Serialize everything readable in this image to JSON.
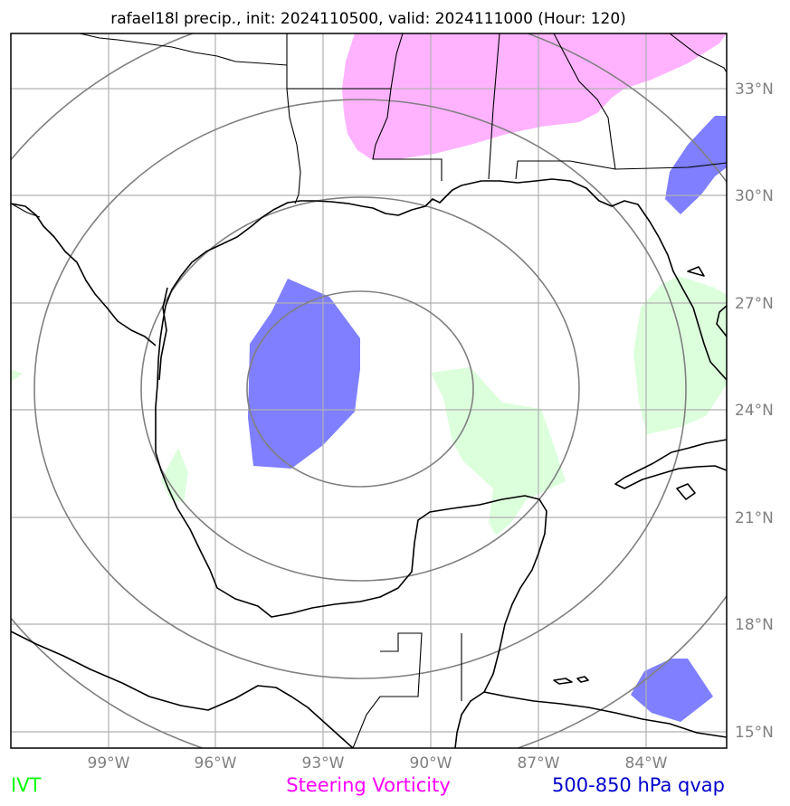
{
  "title": "rafael18l precip., init: 2024110500, valid: 2024111000 (Hour: 120)",
  "lat_ticks": [
    "33°N",
    "30°N",
    "27°N",
    "24°N",
    "21°N",
    "18°N",
    "15°N"
  ],
  "lon_ticks": [
    "99°W",
    "96°W",
    "93°W",
    "90°W",
    "87°W",
    "84°W"
  ],
  "legend": [
    {
      "label": "IVT",
      "color": "#00ff00"
    },
    {
      "label": "Steering Vorticity",
      "color": "#ff00ff"
    },
    {
      "label": "500-850 hPa qvap",
      "color": "#0000cc"
    }
  ],
  "layer_colors": {
    "ivt_fill": "#dcffdc",
    "vorticity_fill": "#ffb3ff",
    "qvap_fill": "#7f7fff",
    "range_rings": "#808080",
    "gridlines": "#b0b0b0"
  },
  "map": {
    "region": "Gulf of Mexico",
    "lon_range": [
      -101.7,
      -81.7
    ],
    "lat_range": [
      14.5,
      34.5
    ],
    "gridline_lons": [
      -99,
      -96,
      -93,
      -90,
      -87,
      -84
    ],
    "gridline_lats": [
      33,
      30,
      27,
      24,
      21,
      18,
      15
    ]
  }
}
